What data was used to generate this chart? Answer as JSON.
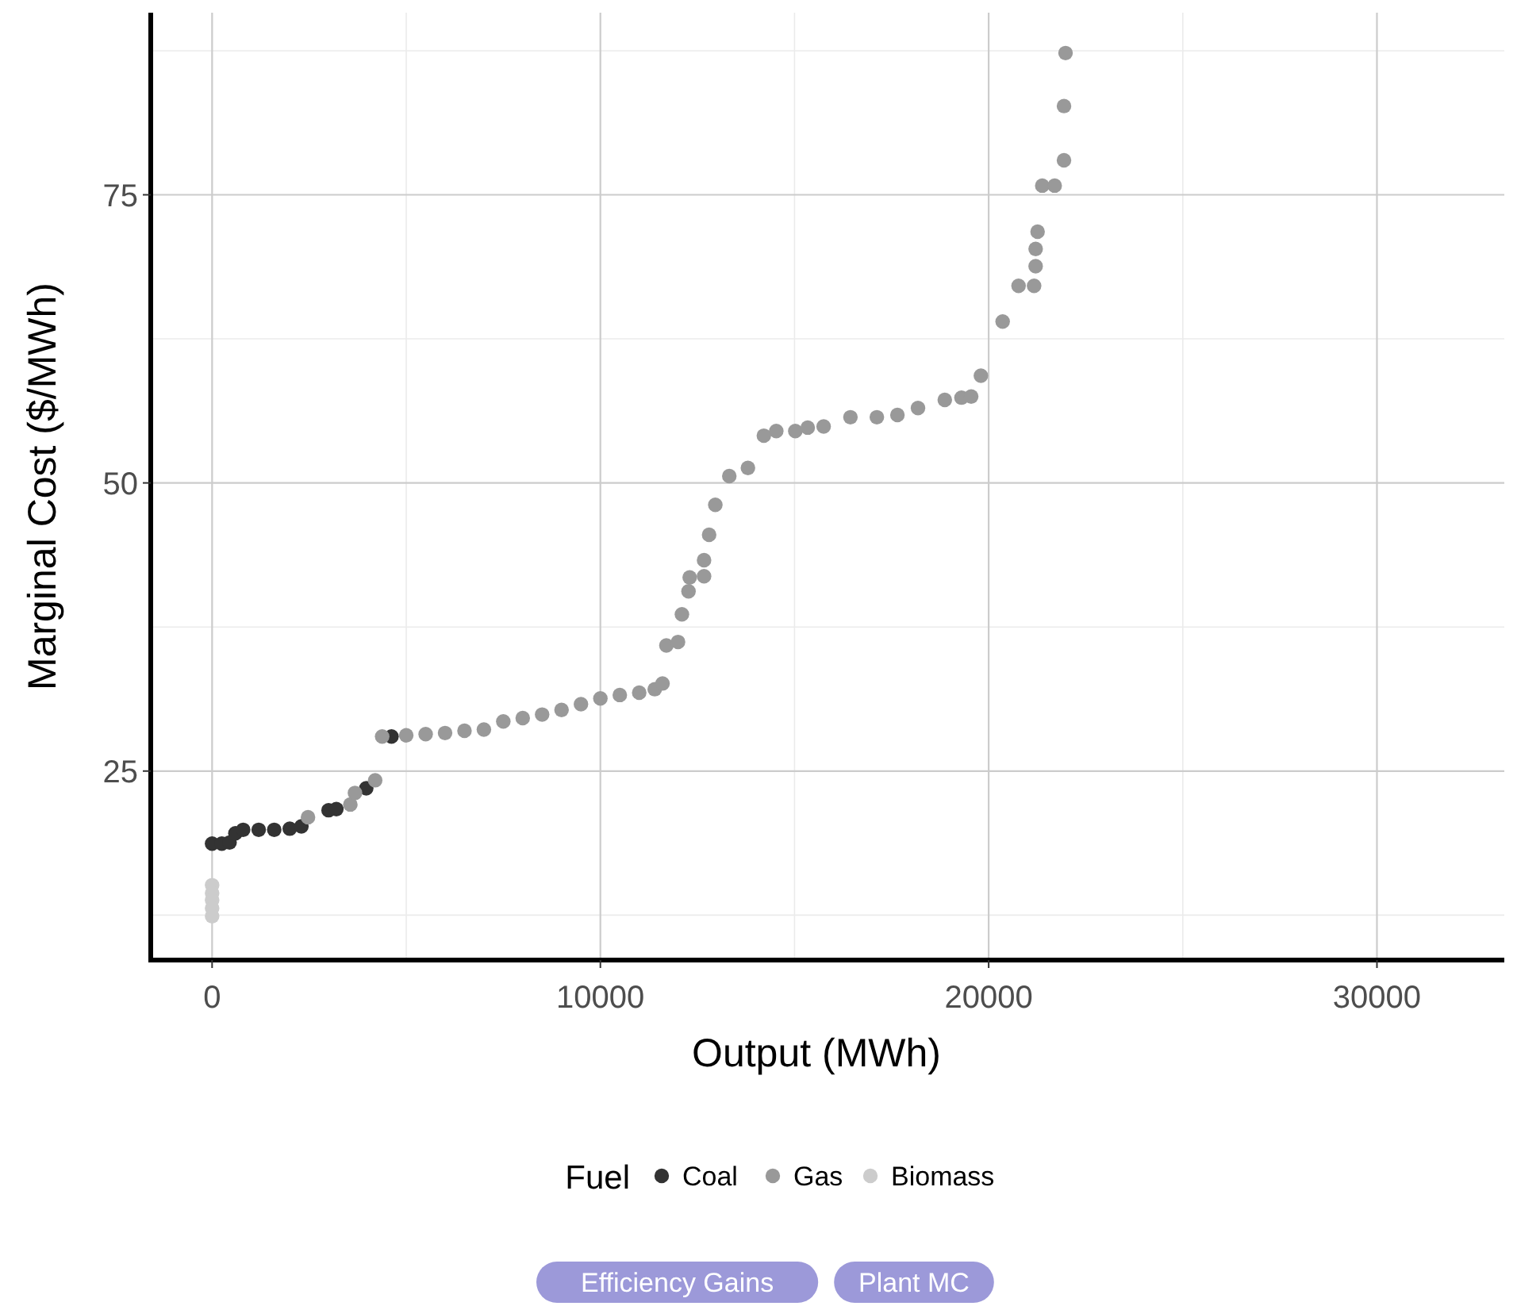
{
  "chart_data": {
    "type": "scatter",
    "xlabel": "Output (MWh)",
    "ylabel": "Marginal Cost ($/MWh)",
    "legend_title": "Fuel",
    "legend": "bottom",
    "grid": true,
    "marker": "circle",
    "xlim": [
      -1580,
      33280
    ],
    "ylim": [
      8.6,
      90.8
    ],
    "xticks": [
      0,
      10000,
      20000,
      30000
    ],
    "yticks": [
      25,
      50,
      75
    ],
    "series": [
      {
        "name": "Coal",
        "color": "#333333",
        "x": [
          0,
          250,
          450,
          600,
          800,
          1200,
          1600,
          2000,
          2300,
          3000,
          3200,
          3970,
          4620
        ],
        "values": [
          18.7,
          18.7,
          18.8,
          19.6,
          19.9,
          19.9,
          19.9,
          20.0,
          20.2,
          21.6,
          21.7,
          23.5,
          28.0
        ]
      },
      {
        "name": "Gas",
        "color": "#999999",
        "x": [
          2470,
          3560,
          3680,
          4200,
          4380,
          5000,
          5500,
          6000,
          6500,
          7000,
          7500,
          8000,
          8500,
          9000,
          9500,
          10000,
          10500,
          11000,
          11400,
          11600,
          11700,
          12000,
          12100,
          12270,
          12300,
          12670,
          12670,
          12800,
          12960,
          13320,
          13800,
          14210,
          14530,
          15020,
          15340,
          15750,
          16440,
          17120,
          17650,
          18180,
          18870,
          19300,
          19550,
          19800,
          20360,
          20770,
          21170,
          21210,
          21210,
          21260,
          21380,
          21700,
          21940,
          21940,
          21980
        ],
        "values": [
          21.0,
          22.1,
          23.1,
          24.2,
          28.0,
          28.1,
          28.2,
          28.3,
          28.5,
          28.6,
          29.3,
          29.6,
          29.9,
          30.3,
          30.8,
          31.3,
          31.6,
          31.8,
          32.1,
          32.6,
          35.9,
          36.2,
          38.6,
          40.6,
          41.8,
          41.9,
          43.3,
          45.5,
          48.1,
          50.6,
          51.3,
          54.1,
          54.5,
          54.5,
          54.8,
          54.9,
          55.7,
          55.7,
          55.9,
          56.5,
          57.2,
          57.4,
          57.5,
          59.3,
          64.0,
          67.1,
          67.1,
          68.8,
          70.3,
          71.8,
          75.8,
          75.8,
          78.0,
          82.7,
          87.3
        ]
      },
      {
        "name": "Biomass",
        "color": "#cccccc",
        "x": [
          0,
          0,
          0,
          0,
          0
        ],
        "values": [
          15.1,
          14.4,
          13.8,
          13.1,
          12.4
        ]
      }
    ],
    "annotations": [
      "Efficiency Gains",
      "Plant MC"
    ]
  }
}
